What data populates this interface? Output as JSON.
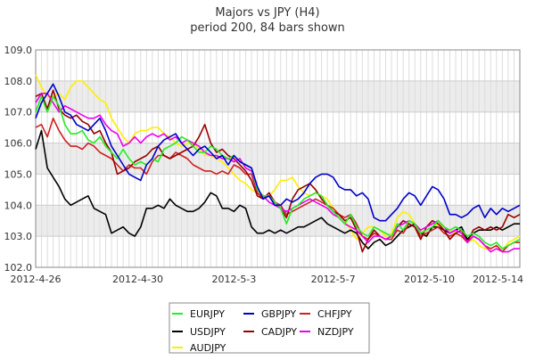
{
  "chart_data": {
    "type": "line",
    "title": "Majors vs JPY (H4)",
    "subtitle": "period 200, 84 bars shown",
    "xlabel": "",
    "ylabel": "",
    "ylim": [
      102.0,
      109.0
    ],
    "yticks": [
      "102.0",
      "103.0",
      "104.0",
      "105.0",
      "106.0",
      "107.0",
      "108.0",
      "109.0"
    ],
    "xlim": [
      0,
      83
    ],
    "xticks": [
      {
        "i": 0,
        "label": "2012-4-26"
      },
      {
        "i": 17.5,
        "label": "2012-4-30"
      },
      {
        "i": 34,
        "label": "2012-5-3"
      },
      {
        "i": 51,
        "label": "2012-5-7"
      },
      {
        "i": 67.5,
        "label": "2012-5-10"
      },
      {
        "i": 83,
        "label": "2012-5-14"
      }
    ],
    "grid": true,
    "legend_position": "bottom",
    "series": [
      {
        "name": "EURJPY",
        "color": "#22ee22",
        "values": [
          107.0,
          107.5,
          107.0,
          107.5,
          107.2,
          106.6,
          106.3,
          106.3,
          106.4,
          106.1,
          106.0,
          106.2,
          105.9,
          105.7,
          105.5,
          105.8,
          105.5,
          105.3,
          105.4,
          105.3,
          105.5,
          105.4,
          105.8,
          105.9,
          106.0,
          106.2,
          106.1,
          105.9,
          105.7,
          105.7,
          105.9,
          105.8,
          105.6,
          105.5,
          105.6,
          105.4,
          105.3,
          105.2,
          104.5,
          104.3,
          104.3,
          104.1,
          103.9,
          103.4,
          103.9,
          104.0,
          104.2,
          104.3,
          104.4,
          104.3,
          104.0,
          103.8,
          103.6,
          103.4,
          103.7,
          103.3,
          103.1,
          103.0,
          103.3,
          103.2,
          103.1,
          103.0,
          103.4,
          103.2,
          103.5,
          103.4,
          103.1,
          103.2,
          103.3,
          103.5,
          103.3,
          103.2,
          103.3,
          103.2,
          103.0,
          103.1,
          103.0,
          102.8,
          102.7,
          102.8,
          102.6,
          102.7,
          102.8,
          102.9
        ]
      },
      {
        "name": "GBPJPY",
        "color": "#0000cc",
        "values": [
          106.8,
          107.3,
          107.6,
          107.9,
          107.5,
          107.0,
          106.9,
          106.6,
          106.5,
          106.4,
          106.6,
          106.8,
          106.4,
          105.9,
          105.6,
          105.3,
          105.0,
          104.9,
          104.8,
          105.3,
          105.5,
          105.9,
          106.1,
          106.2,
          106.3,
          106.0,
          105.8,
          105.6,
          105.8,
          105.9,
          105.7,
          105.5,
          105.6,
          105.3,
          105.6,
          105.4,
          105.3,
          105.2,
          104.6,
          104.2,
          104.3,
          104.0,
          104.0,
          104.2,
          104.1,
          104.2,
          104.4,
          104.7,
          104.9,
          105.0,
          105.0,
          104.9,
          104.6,
          104.5,
          104.5,
          104.3,
          104.4,
          104.2,
          103.6,
          103.5,
          103.5,
          103.7,
          103.9,
          104.2,
          104.4,
          104.3,
          104.0,
          104.3,
          104.6,
          104.5,
          104.2,
          103.7,
          103.7,
          103.6,
          103.7,
          103.9,
          104.0,
          103.6,
          103.9,
          103.7,
          103.9,
          103.8,
          103.9,
          104.0
        ]
      },
      {
        "name": "CHFJPY",
        "color": "#cc2222",
        "values": [
          106.5,
          106.6,
          106.2,
          106.8,
          106.4,
          106.1,
          105.9,
          105.9,
          105.8,
          106.0,
          105.9,
          105.7,
          105.6,
          105.5,
          105.3,
          105.1,
          105.3,
          105.2,
          105.2,
          105.0,
          105.4,
          105.6,
          105.6,
          105.5,
          105.7,
          105.6,
          105.5,
          105.3,
          105.2,
          105.1,
          105.1,
          105.0,
          105.1,
          105.0,
          105.3,
          105.2,
          105.0,
          105.0,
          104.4,
          104.2,
          104.3,
          104.1,
          104.0,
          103.7,
          103.8,
          103.9,
          104.0,
          104.1,
          104.2,
          104.1,
          104.0,
          103.9,
          103.7,
          103.6,
          103.7,
          103.4,
          103.0,
          102.9,
          103.1,
          103.0,
          102.9,
          102.9,
          103.2,
          103.1,
          103.4,
          103.3,
          103.0,
          103.1,
          103.2,
          103.3,
          103.1,
          103.0,
          103.1,
          103.0,
          102.8,
          103.0,
          102.9,
          102.7,
          102.6,
          102.7,
          102.5,
          102.7,
          102.8,
          102.8
        ]
      },
      {
        "name": "USDJPY",
        "color": "#000000",
        "values": [
          105.8,
          106.4,
          105.2,
          104.9,
          104.6,
          104.2,
          104.0,
          104.1,
          104.2,
          104.3,
          103.9,
          103.8,
          103.7,
          103.1,
          103.2,
          103.3,
          103.1,
          103.0,
          103.3,
          103.9,
          103.9,
          104.0,
          103.9,
          104.2,
          104.0,
          103.9,
          103.8,
          103.8,
          103.9,
          104.1,
          104.4,
          104.3,
          103.9,
          103.9,
          103.8,
          104.0,
          103.9,
          103.3,
          103.1,
          103.1,
          103.2,
          103.1,
          103.2,
          103.1,
          103.2,
          103.3,
          103.3,
          103.4,
          103.5,
          103.6,
          103.4,
          103.3,
          103.2,
          103.1,
          103.2,
          103.1,
          102.8,
          102.6,
          102.8,
          102.9,
          102.7,
          102.8,
          103.0,
          103.2,
          103.3,
          103.4,
          103.1,
          103.0,
          103.3,
          103.3,
          103.2,
          103.1,
          103.2,
          103.3,
          102.9,
          103.1,
          103.2,
          103.2,
          103.2,
          103.3,
          103.2,
          103.3,
          103.4,
          103.4
        ]
      },
      {
        "name": "CADJPY",
        "color": "#990000",
        "values": [
          107.5,
          107.6,
          107.1,
          107.7,
          107.1,
          106.9,
          106.8,
          106.9,
          106.7,
          106.6,
          106.3,
          106.4,
          106.0,
          105.7,
          105.0,
          105.1,
          105.2,
          105.4,
          105.5,
          105.6,
          105.8,
          105.9,
          105.6,
          105.5,
          105.6,
          105.7,
          105.8,
          105.9,
          106.2,
          106.6,
          106.0,
          105.7,
          105.8,
          105.6,
          105.5,
          105.3,
          105.1,
          104.8,
          104.3,
          104.2,
          104.4,
          104.1,
          103.9,
          103.6,
          104.2,
          104.5,
          104.6,
          104.7,
          104.5,
          104.2,
          104.0,
          103.8,
          103.7,
          103.5,
          103.6,
          103.2,
          102.5,
          102.9,
          103.2,
          103.0,
          102.9,
          103.0,
          103.3,
          103.5,
          103.4,
          103.3,
          102.9,
          103.3,
          103.5,
          103.4,
          103.2,
          102.9,
          103.1,
          103.2,
          102.8,
          103.2,
          103.3,
          103.2,
          103.3,
          103.2,
          103.3,
          103.7,
          103.6,
          103.7
        ]
      },
      {
        "name": "NZDJPY",
        "color": "#ee00ee",
        "values": [
          107.3,
          107.6,
          107.6,
          107.3,
          107.0,
          107.2,
          107.1,
          107.0,
          106.9,
          106.8,
          106.8,
          106.9,
          106.6,
          106.4,
          106.3,
          105.9,
          106.0,
          106.2,
          106.0,
          106.2,
          106.3,
          106.2,
          106.3,
          106.1,
          106.2,
          106.0,
          106.1,
          106.0,
          105.9,
          105.7,
          105.6,
          105.6,
          105.5,
          105.5,
          105.4,
          105.5,
          105.2,
          105.1,
          104.5,
          104.3,
          104.1,
          104.0,
          103.9,
          103.8,
          103.9,
          104.0,
          104.1,
          104.2,
          104.1,
          104.0,
          103.9,
          103.7,
          103.6,
          103.4,
          103.3,
          103.2,
          103.0,
          102.8,
          103.0,
          103.0,
          102.9,
          103.0,
          103.3,
          103.4,
          103.5,
          103.4,
          103.2,
          103.3,
          103.4,
          103.5,
          103.3,
          103.1,
          103.2,
          103.1,
          102.8,
          103.0,
          102.9,
          102.7,
          102.5,
          102.6,
          102.5,
          102.5,
          102.6,
          102.6
        ]
      },
      {
        "name": "AUDJPY",
        "color": "#ffee00",
        "values": [
          108.2,
          107.8,
          107.5,
          107.5,
          107.6,
          107.4,
          107.8,
          108.0,
          108.0,
          107.8,
          107.6,
          107.4,
          107.3,
          106.8,
          106.5,
          106.2,
          106.0,
          106.3,
          106.4,
          106.4,
          106.5,
          106.5,
          106.3,
          106.2,
          106.0,
          105.9,
          106.0,
          106.0,
          105.8,
          105.6,
          105.6,
          105.5,
          105.4,
          105.2,
          105.0,
          104.8,
          104.7,
          104.5,
          104.4,
          104.3,
          104.3,
          104.5,
          104.8,
          104.8,
          104.9,
          104.6,
          104.4,
          104.3,
          104.4,
          104.3,
          104.2,
          103.9,
          103.7,
          103.5,
          103.2,
          102.9,
          103.1,
          103.3,
          103.3,
          103.2,
          103.0,
          103.1,
          103.6,
          103.8,
          103.7,
          103.4,
          103.2,
          103.0,
          103.3,
          103.4,
          103.3,
          103.2,
          103.1,
          103.0,
          102.8,
          102.9,
          102.7,
          102.6,
          102.6,
          102.7,
          102.5,
          102.8,
          102.9,
          103.0
        ]
      }
    ]
  }
}
